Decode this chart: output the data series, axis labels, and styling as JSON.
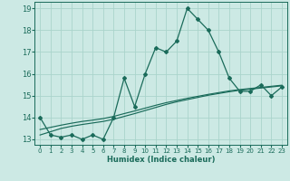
{
  "title": "",
  "xlabel": "Humidex (Indice chaleur)",
  "ylabel": "",
  "background_color": "#cce9e4",
  "grid_color": "#aad4cc",
  "line_color": "#1a6b5a",
  "x_values": [
    0,
    1,
    2,
    3,
    4,
    5,
    6,
    7,
    8,
    9,
    10,
    11,
    12,
    13,
    14,
    15,
    16,
    17,
    18,
    19,
    20,
    21,
    22,
    23
  ],
  "y_main": [
    14.0,
    13.2,
    13.1,
    13.2,
    13.0,
    13.2,
    13.0,
    14.0,
    15.8,
    14.5,
    16.0,
    17.2,
    17.0,
    17.5,
    19.0,
    18.5,
    18.0,
    17.0,
    15.8,
    15.2,
    15.2,
    15.5,
    15.0,
    15.4
  ],
  "y_trend1": [
    13.2,
    13.35,
    13.5,
    13.6,
    13.68,
    13.75,
    13.82,
    13.92,
    14.05,
    14.18,
    14.32,
    14.46,
    14.6,
    14.72,
    14.82,
    14.92,
    15.02,
    15.1,
    15.18,
    15.25,
    15.3,
    15.35,
    15.4,
    15.45
  ],
  "y_trend2": [
    13.45,
    13.55,
    13.65,
    13.74,
    13.82,
    13.88,
    13.95,
    14.05,
    14.18,
    14.3,
    14.43,
    14.56,
    14.68,
    14.78,
    14.88,
    14.97,
    15.06,
    15.14,
    15.22,
    15.28,
    15.33,
    15.38,
    15.43,
    15.48
  ],
  "ylim": [
    12.75,
    19.3
  ],
  "xlim": [
    -0.5,
    23.5
  ],
  "yticks": [
    13,
    14,
    15,
    16,
    17,
    18,
    19
  ],
  "xticks": [
    0,
    1,
    2,
    3,
    4,
    5,
    6,
    7,
    8,
    9,
    10,
    11,
    12,
    13,
    14,
    15,
    16,
    17,
    18,
    19,
    20,
    21,
    22,
    23
  ]
}
